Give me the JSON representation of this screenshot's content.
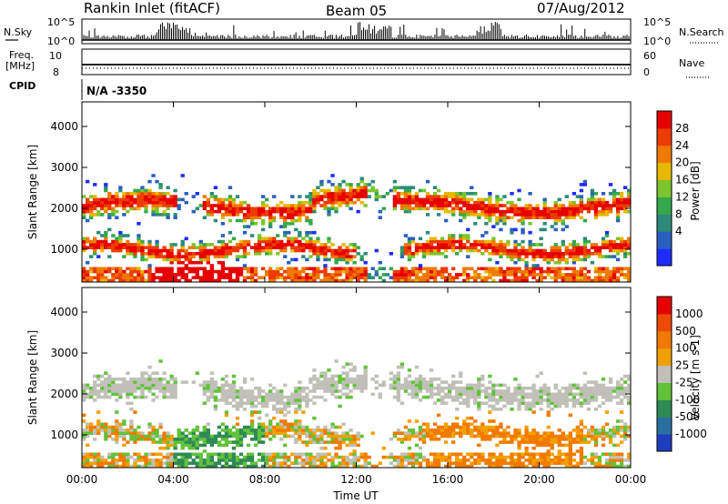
{
  "header": {
    "station": "Rankin Inlet (fitACF)",
    "beam": "Beam 05",
    "date": "07/Aug/2012"
  },
  "top_strip": {
    "left_label": "N.Sky",
    "right_label": "N.Search",
    "left_ticks": [
      "10^5",
      "10^0"
    ],
    "right_ticks": [
      "10^5",
      "10^0"
    ]
  },
  "freq_strip": {
    "left_label_line1": "Freq.",
    "left_label_line2": "[MHz]",
    "left_ticks": [
      "10",
      "8"
    ],
    "right_label": "Nave",
    "right_ticks": [
      "60",
      "0"
    ]
  },
  "cpid": {
    "label": "CPID",
    "value": "N/A -3350"
  },
  "chart_data": [
    {
      "type": "heatmap",
      "name": "power",
      "ylabel": "Slant Range [km]",
      "ylim": [
        200,
        4600
      ],
      "y_ticks": [
        "4000",
        "3000",
        "2000",
        "1000"
      ],
      "y_tick_values": [
        4000,
        3000,
        2000,
        1000
      ],
      "x_ticks": [
        "00:00",
        "04:00",
        "08:00",
        "12:00",
        "16:00",
        "20:00",
        "00:00"
      ],
      "x_tick_values": [
        0,
        4,
        8,
        12,
        16,
        20,
        24
      ],
      "colorbar": {
        "label": "Power [dB]",
        "ticks": [
          "28",
          "24",
          "20",
          "16",
          "12",
          "8",
          "4"
        ],
        "colors": [
          "#1e2cff",
          "#2b5fbf",
          "#2c8a7a",
          "#34a84c",
          "#7cc52e",
          "#e6b800",
          "#f07a00",
          "#ec3c00",
          "#e60000"
        ]
      }
    },
    {
      "type": "heatmap",
      "name": "velocity",
      "ylabel": "Slant Range [km]",
      "ylim": [
        200,
        4600
      ],
      "xlabel": "Time UT",
      "y_ticks": [
        "4000",
        "3000",
        "2000",
        "1000"
      ],
      "y_tick_values": [
        4000,
        3000,
        2000,
        1000
      ],
      "x_ticks": [
        "00:00",
        "04:00",
        "08:00",
        "12:00",
        "16:00",
        "20:00",
        "00:00"
      ],
      "x_tick_values": [
        0,
        4,
        8,
        12,
        16,
        20,
        24
      ],
      "colorbar": {
        "label": "Velocity [m s-1]",
        "ticks": [
          "1000",
          "500",
          "100",
          "25",
          "-25",
          "-100",
          "-500",
          "-1000"
        ],
        "colors": [
          "#1f3dbf",
          "#2a6f9e",
          "#2e8a55",
          "#62c23a",
          "#c0c0b8",
          "#f2a000",
          "#f07a00",
          "#ec4a00",
          "#e60000"
        ]
      }
    }
  ]
}
